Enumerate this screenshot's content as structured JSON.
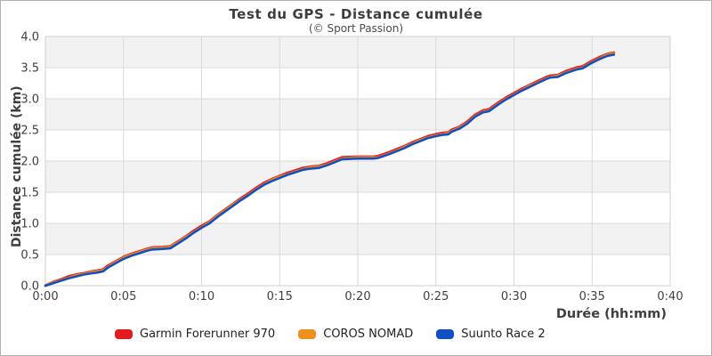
{
  "chart_data": {
    "type": "line",
    "title": "Test du GPS - Distance cumulée",
    "subtitle": "(© Sport Passion)",
    "xlabel": "Durée (hh:mm)",
    "ylabel": "Distance cumulée (km)",
    "x_unit": "minutes",
    "xlim": [
      0,
      40
    ],
    "ylim": [
      0,
      4
    ],
    "x_ticks": [
      {
        "v": 0,
        "label": "0:00"
      },
      {
        "v": 5,
        "label": "0:05"
      },
      {
        "v": 10,
        "label": "0:10"
      },
      {
        "v": 15,
        "label": "0:15"
      },
      {
        "v": 20,
        "label": "0:20"
      },
      {
        "v": 25,
        "label": "0:25"
      },
      {
        "v": 30,
        "label": "0:30"
      },
      {
        "v": 35,
        "label": "0:35"
      },
      {
        "v": 40,
        "label": "0:40"
      }
    ],
    "y_ticks": [
      {
        "v": 0,
        "label": "0.0"
      },
      {
        "v": 0.5,
        "label": "0.5"
      },
      {
        "v": 1,
        "label": "1.0"
      },
      {
        "v": 1.5,
        "label": "1.5"
      },
      {
        "v": 2,
        "label": "2.0"
      },
      {
        "v": 2.5,
        "label": "2.5"
      },
      {
        "v": 3,
        "label": "3.0"
      },
      {
        "v": 3.5,
        "label": "3.5"
      },
      {
        "v": 4,
        "label": "4.0"
      }
    ],
    "grid": true,
    "grid_color": "#d9d9d9",
    "band_fill": "#f2f2f2",
    "plot_border_color": "#cfcfcf",
    "legend_position": "bottom",
    "series": [
      {
        "name": "Garmin Forerunner 970",
        "color": "#e51b20",
        "points": [
          [
            0,
            0
          ],
          [
            0.5,
            0.06
          ],
          [
            1,
            0.1
          ],
          [
            1.5,
            0.15
          ],
          [
            2,
            0.18
          ],
          [
            2.5,
            0.2
          ],
          [
            3,
            0.23
          ],
          [
            3.3,
            0.24
          ],
          [
            3.7,
            0.26
          ],
          [
            4,
            0.32
          ],
          [
            4.5,
            0.39
          ],
          [
            5,
            0.46
          ],
          [
            5.5,
            0.51
          ],
          [
            6,
            0.55
          ],
          [
            6.5,
            0.59
          ],
          [
            6.8,
            0.61
          ],
          [
            7.5,
            0.62
          ],
          [
            8,
            0.63
          ],
          [
            8.5,
            0.71
          ],
          [
            9,
            0.79
          ],
          [
            9.5,
            0.88
          ],
          [
            10,
            0.96
          ],
          [
            10.5,
            1.03
          ],
          [
            11,
            1.13
          ],
          [
            11.5,
            1.22
          ],
          [
            12,
            1.31
          ],
          [
            12.5,
            1.4
          ],
          [
            13,
            1.48
          ],
          [
            13.5,
            1.57
          ],
          [
            14,
            1.65
          ],
          [
            14.5,
            1.71
          ],
          [
            15,
            1.76
          ],
          [
            15.5,
            1.81
          ],
          [
            16,
            1.85
          ],
          [
            16.5,
            1.89
          ],
          [
            17,
            1.91
          ],
          [
            17.5,
            1.92
          ],
          [
            18,
            1.96
          ],
          [
            18.5,
            2.01
          ],
          [
            19,
            2.06
          ],
          [
            20,
            2.07
          ],
          [
            21,
            2.07
          ],
          [
            21.3,
            2.08
          ],
          [
            22,
            2.14
          ],
          [
            22.5,
            2.19
          ],
          [
            23,
            2.24
          ],
          [
            23.5,
            2.3
          ],
          [
            24,
            2.35
          ],
          [
            24.5,
            2.4
          ],
          [
            25,
            2.43
          ],
          [
            25.4,
            2.45
          ],
          [
            25.8,
            2.46
          ],
          [
            26,
            2.5
          ],
          [
            26.5,
            2.55
          ],
          [
            27,
            2.63
          ],
          [
            27.5,
            2.74
          ],
          [
            28,
            2.81
          ],
          [
            28.4,
            2.83
          ],
          [
            29,
            2.94
          ],
          [
            29.5,
            3.02
          ],
          [
            30,
            3.09
          ],
          [
            30.5,
            3.16
          ],
          [
            31,
            3.22
          ],
          [
            31.5,
            3.28
          ],
          [
            32,
            3.34
          ],
          [
            32.3,
            3.37
          ],
          [
            32.8,
            3.38
          ],
          [
            33.3,
            3.44
          ],
          [
            34,
            3.5
          ],
          [
            34.4,
            3.52
          ],
          [
            35,
            3.61
          ],
          [
            35.5,
            3.67
          ],
          [
            36,
            3.72
          ],
          [
            36.4,
            3.74
          ]
        ]
      },
      {
        "name": "COROS NOMAD",
        "color": "#ef8f1c",
        "points": [
          [
            0,
            0
          ],
          [
            0.5,
            0.05
          ],
          [
            1,
            0.09
          ],
          [
            1.5,
            0.13
          ],
          [
            2,
            0.17
          ],
          [
            2.5,
            0.19
          ],
          [
            3,
            0.22
          ],
          [
            3.3,
            0.23
          ],
          [
            3.7,
            0.25
          ],
          [
            4,
            0.3
          ],
          [
            4.5,
            0.38
          ],
          [
            5,
            0.45
          ],
          [
            5.5,
            0.5
          ],
          [
            6,
            0.54
          ],
          [
            6.5,
            0.58
          ],
          [
            6.8,
            0.6
          ],
          [
            7.5,
            0.61
          ],
          [
            8,
            0.62
          ],
          [
            8.5,
            0.7
          ],
          [
            9,
            0.78
          ],
          [
            9.5,
            0.86
          ],
          [
            10,
            0.94
          ],
          [
            10.5,
            1.02
          ],
          [
            11,
            1.12
          ],
          [
            11.5,
            1.21
          ],
          [
            12,
            1.3
          ],
          [
            12.5,
            1.38
          ],
          [
            13,
            1.46
          ],
          [
            13.5,
            1.55
          ],
          [
            14,
            1.63
          ],
          [
            14.5,
            1.7
          ],
          [
            15,
            1.75
          ],
          [
            15.5,
            1.79
          ],
          [
            16,
            1.83
          ],
          [
            16.5,
            1.87
          ],
          [
            17,
            1.9
          ],
          [
            17.5,
            1.91
          ],
          [
            18,
            1.94
          ],
          [
            18.5,
            1.99
          ],
          [
            19,
            2.04
          ],
          [
            20,
            2.06
          ],
          [
            21,
            2.06
          ],
          [
            21.3,
            2.06
          ],
          [
            22,
            2.12
          ],
          [
            22.5,
            2.17
          ],
          [
            23,
            2.23
          ],
          [
            23.5,
            2.28
          ],
          [
            24,
            2.34
          ],
          [
            24.5,
            2.38
          ],
          [
            25,
            2.41
          ],
          [
            25.4,
            2.43
          ],
          [
            25.8,
            2.45
          ],
          [
            26,
            2.48
          ],
          [
            26.5,
            2.54
          ],
          [
            27,
            2.61
          ],
          [
            27.5,
            2.72
          ],
          [
            28,
            2.79
          ],
          [
            28.4,
            2.81
          ],
          [
            29,
            2.92
          ],
          [
            29.5,
            3.0
          ],
          [
            30,
            3.07
          ],
          [
            30.5,
            3.14
          ],
          [
            31,
            3.21
          ],
          [
            31.5,
            3.26
          ],
          [
            32,
            3.32
          ],
          [
            32.3,
            3.35
          ],
          [
            32.8,
            3.37
          ],
          [
            33.3,
            3.42
          ],
          [
            34,
            3.48
          ],
          [
            34.4,
            3.5
          ],
          [
            35,
            3.59
          ],
          [
            35.5,
            3.65
          ],
          [
            36,
            3.71
          ],
          [
            36.4,
            3.73
          ]
        ]
      },
      {
        "name": "Suunto Race 2",
        "color": "#1150c2",
        "points": [
          [
            0,
            0
          ],
          [
            0.5,
            0.04
          ],
          [
            1,
            0.08
          ],
          [
            1.5,
            0.12
          ],
          [
            2,
            0.15
          ],
          [
            2.5,
            0.18
          ],
          [
            3,
            0.2
          ],
          [
            3.3,
            0.21
          ],
          [
            3.7,
            0.23
          ],
          [
            4,
            0.29
          ],
          [
            4.5,
            0.36
          ],
          [
            5,
            0.43
          ],
          [
            5.5,
            0.48
          ],
          [
            6,
            0.52
          ],
          [
            6.5,
            0.56
          ],
          [
            6.8,
            0.58
          ],
          [
            7.5,
            0.59
          ],
          [
            8,
            0.6
          ],
          [
            8.5,
            0.68
          ],
          [
            9,
            0.76
          ],
          [
            9.5,
            0.85
          ],
          [
            10,
            0.93
          ],
          [
            10.5,
            1.0
          ],
          [
            11,
            1.1
          ],
          [
            11.5,
            1.19
          ],
          [
            12,
            1.28
          ],
          [
            12.5,
            1.37
          ],
          [
            13,
            1.45
          ],
          [
            13.5,
            1.54
          ],
          [
            14,
            1.62
          ],
          [
            14.5,
            1.68
          ],
          [
            15,
            1.73
          ],
          [
            15.5,
            1.78
          ],
          [
            16,
            1.82
          ],
          [
            16.5,
            1.86
          ],
          [
            17,
            1.88
          ],
          [
            17.5,
            1.89
          ],
          [
            18,
            1.93
          ],
          [
            18.5,
            1.98
          ],
          [
            19,
            2.03
          ],
          [
            20,
            2.04
          ],
          [
            21,
            2.04
          ],
          [
            21.3,
            2.05
          ],
          [
            22,
            2.11
          ],
          [
            22.5,
            2.16
          ],
          [
            23,
            2.21
          ],
          [
            23.5,
            2.27
          ],
          [
            24,
            2.32
          ],
          [
            24.5,
            2.37
          ],
          [
            25,
            2.4
          ],
          [
            25.4,
            2.42
          ],
          [
            25.8,
            2.43
          ],
          [
            26,
            2.47
          ],
          [
            26.5,
            2.52
          ],
          [
            27,
            2.6
          ],
          [
            27.5,
            2.71
          ],
          [
            28,
            2.78
          ],
          [
            28.4,
            2.8
          ],
          [
            29,
            2.91
          ],
          [
            29.5,
            2.99
          ],
          [
            30,
            3.06
          ],
          [
            30.5,
            3.13
          ],
          [
            31,
            3.19
          ],
          [
            31.5,
            3.25
          ],
          [
            32,
            3.31
          ],
          [
            32.3,
            3.34
          ],
          [
            32.8,
            3.35
          ],
          [
            33.3,
            3.41
          ],
          [
            34,
            3.47
          ],
          [
            34.4,
            3.49
          ],
          [
            35,
            3.58
          ],
          [
            35.5,
            3.64
          ],
          [
            36,
            3.69
          ],
          [
            36.4,
            3.71
          ]
        ]
      }
    ]
  }
}
